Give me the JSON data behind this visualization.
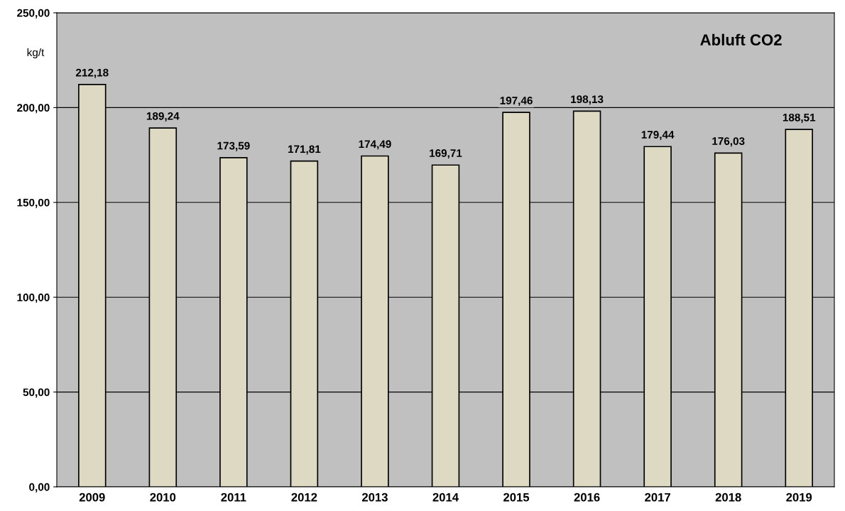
{
  "chart_data": {
    "type": "bar",
    "title": "Abluft CO2",
    "ylabel": "kg/t",
    "categories": [
      "2009",
      "2010",
      "2011",
      "2012",
      "2013",
      "2014",
      "2015",
      "2016",
      "2017",
      "2018",
      "2019"
    ],
    "values": [
      212.18,
      189.24,
      173.59,
      171.81,
      174.49,
      169.71,
      197.46,
      198.13,
      179.44,
      176.03,
      188.51
    ],
    "value_labels": [
      "212,18",
      "189,24",
      "173,59",
      "171,81",
      "174,49",
      "169,71",
      "197,46",
      "198,13",
      "179,44",
      "176,03",
      "188,51"
    ],
    "color": "#ddd9c3",
    "ylim": [
      0,
      250
    ],
    "yticks": [
      {
        "value": 0,
        "label": "0,00"
      },
      {
        "value": 50,
        "label": "50,00"
      },
      {
        "value": 100,
        "label": "100,00"
      },
      {
        "value": 150,
        "label": "150,00"
      },
      {
        "value": 200,
        "label": "200,00"
      },
      {
        "value": 250,
        "label": "250,00"
      }
    ],
    "grid": "y",
    "legend": false
  }
}
